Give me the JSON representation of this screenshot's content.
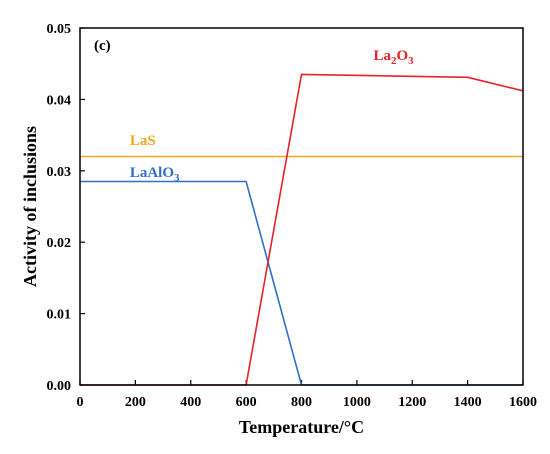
{
  "chart_data": {
    "type": "line",
    "panel_label": "(c)",
    "xlabel": "Temperature/°C",
    "ylabel": "Activity of inclusions",
    "xlim": [
      0,
      1600
    ],
    "ylim": [
      0,
      0.05
    ],
    "x_ticks": [
      "0",
      "200",
      "400",
      "600",
      "800",
      "1000",
      "1200",
      "1400",
      "1600"
    ],
    "y_ticks": [
      "0.00",
      "0.01",
      "0.02",
      "0.03",
      "0.04",
      "0.05"
    ],
    "grid": false,
    "series": [
      {
        "name": "LaS",
        "color": "#f5a623",
        "x": [
          0,
          1600
        ],
        "y": [
          0.032,
          0.032
        ],
        "label_base": "LaS",
        "label_sub": "",
        "label_at": {
          "x": 180,
          "y": 0.0336
        }
      },
      {
        "name": "LaAlO3",
        "color": "#2f6fc8",
        "x": [
          0,
          600,
          800,
          1600
        ],
        "y": [
          0.0285,
          0.0285,
          0.0,
          0.0
        ],
        "label_base": "LaAlO",
        "label_sub": "3",
        "label_at": {
          "x": 180,
          "y": 0.0291
        }
      },
      {
        "name": "La2O3",
        "color": "#e8212b",
        "x": [
          0,
          600,
          800,
          1400,
          1600
        ],
        "y": [
          0.0,
          0.0,
          0.0435,
          0.0431,
          0.0412
        ],
        "label_base": "La",
        "label_sub": "2",
        "label_base2": "O",
        "label_sub2": "3",
        "label_at": {
          "x": 1060,
          "y": 0.0455
        }
      }
    ]
  }
}
